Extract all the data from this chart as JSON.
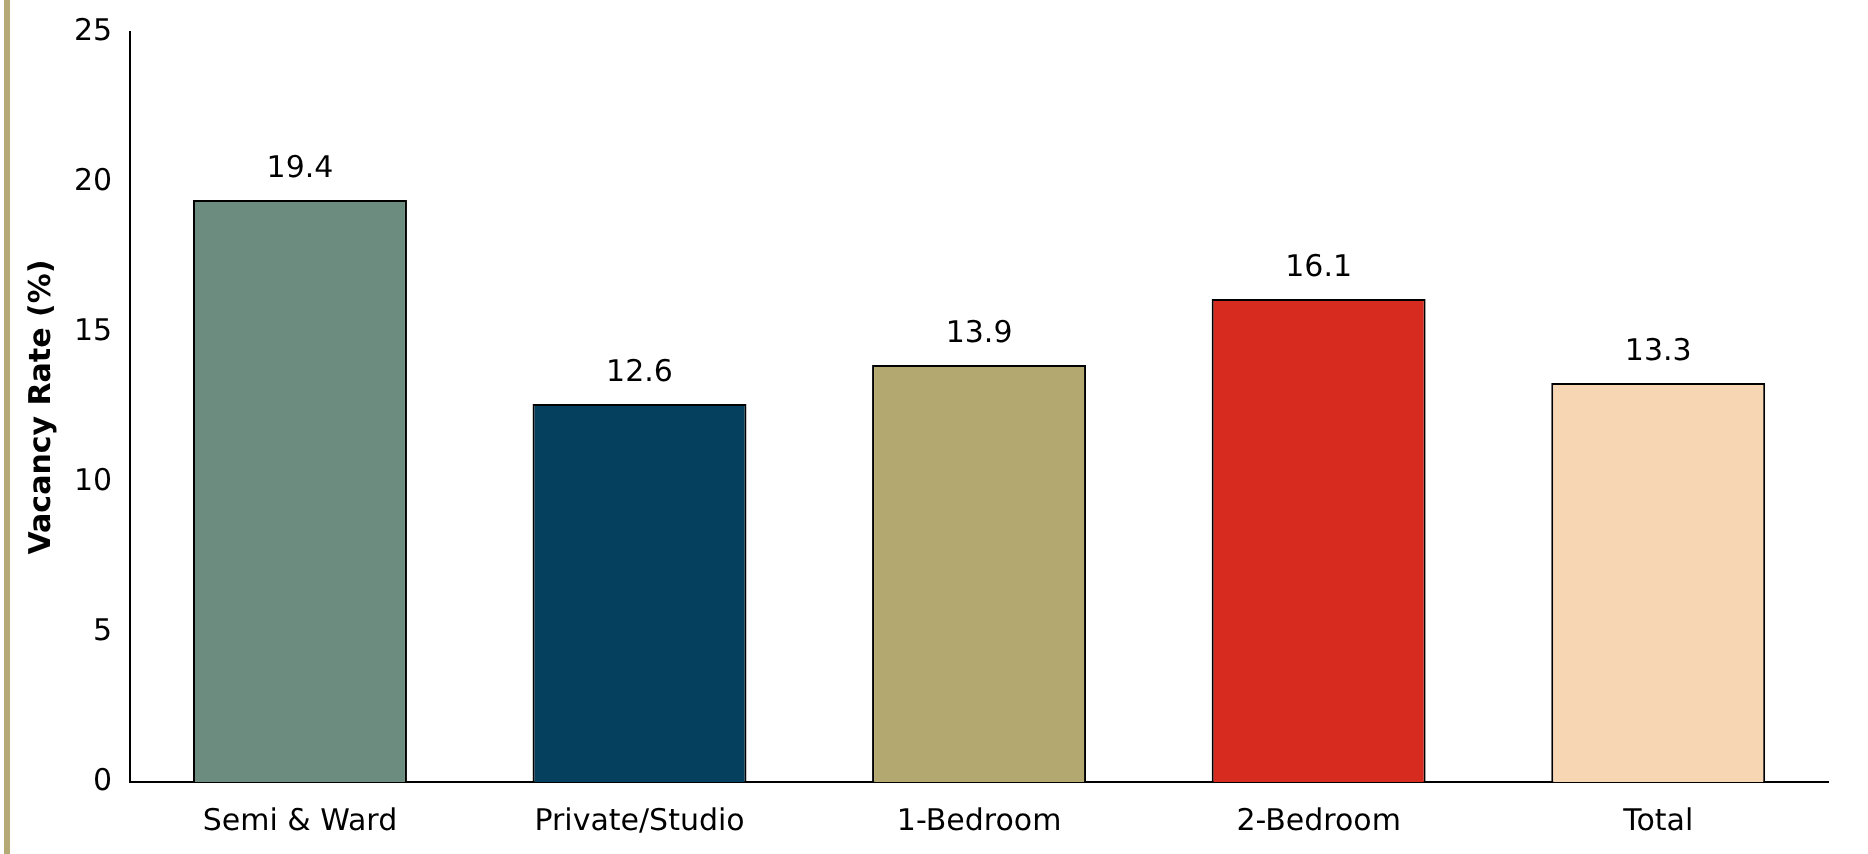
{
  "chart_data": {
    "type": "bar",
    "ylabel": "Vacancy Rate (%)",
    "categories": [
      "Semi & Ward",
      "Private/Studio",
      "1-Bedroom",
      "2-Bedroom",
      "Total"
    ],
    "values": [
      19.4,
      12.6,
      13.9,
      16.1,
      13.3
    ],
    "colors": [
      "#6b8c7e",
      "#05405f",
      "#b3a870",
      "#d72b1f",
      "#f7d6b4"
    ],
    "ylim": [
      0,
      25
    ],
    "yticks": [
      0,
      5,
      10,
      15,
      20,
      25
    ],
    "grid": false,
    "legend": false,
    "data_labels": true
  }
}
